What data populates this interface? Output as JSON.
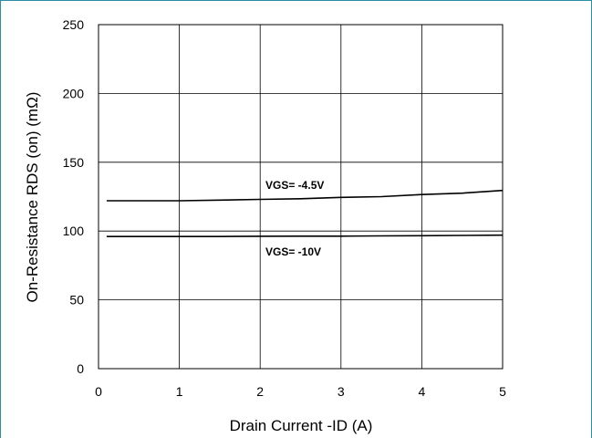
{
  "chart_data": {
    "type": "line",
    "xlabel": "Drain Current -ID (A)",
    "ylabel": "On-Resistance RDS (on) (mΩ)",
    "xlim": [
      0,
      5
    ],
    "ylim": [
      0,
      250
    ],
    "x_ticks": [
      "0",
      "1",
      "2",
      "3",
      "4",
      "5"
    ],
    "y_ticks": [
      "0",
      "50",
      "100",
      "150",
      "200",
      "250"
    ],
    "grid": true,
    "series": [
      {
        "name": "VGS= -4.5V",
        "x": [
          0.1,
          0.5,
          1.0,
          1.5,
          2.0,
          2.5,
          3.0,
          3.5,
          4.0,
          4.5,
          5.0
        ],
        "y": [
          122,
          122,
          122,
          122.5,
          123,
          123.5,
          124.5,
          125,
          126.5,
          127.5,
          129.5
        ]
      },
      {
        "name": "VGS= -10V",
        "x": [
          0.1,
          0.5,
          1.0,
          1.5,
          2.0,
          2.5,
          3.0,
          3.5,
          4.0,
          4.5,
          5.0
        ],
        "y": [
          96,
          96,
          96,
          96,
          96.2,
          96.3,
          96.3,
          96.5,
          96.6,
          96.8,
          97
        ]
      }
    ]
  }
}
